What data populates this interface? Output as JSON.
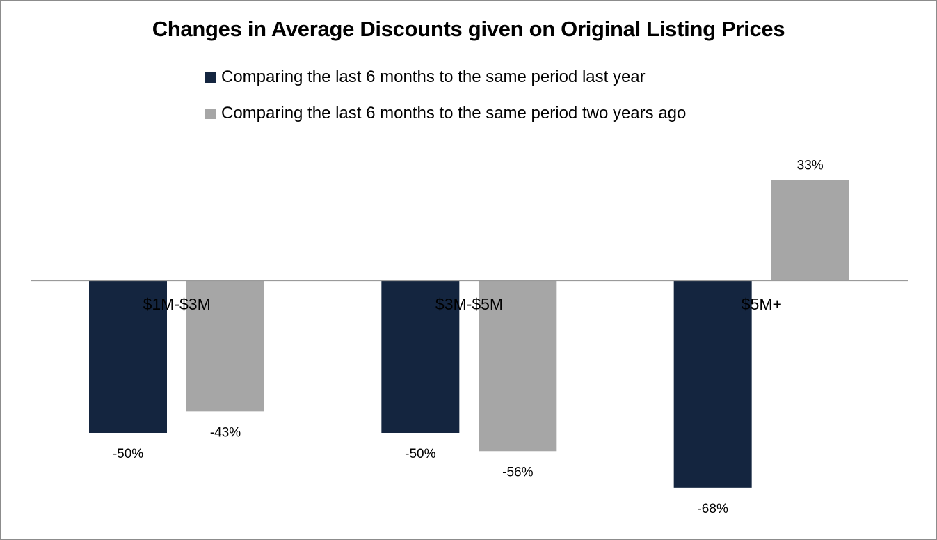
{
  "chart_data": {
    "type": "bar",
    "title": "Changes in Average Discounts given on Original Listing Prices",
    "categories": [
      "$1M-$3M",
      "$3M-$5M",
      "$5M+"
    ],
    "series": [
      {
        "name": "Comparing the last 6 months to the same period last year",
        "values": [
          -50,
          -50,
          -68
        ],
        "labels": [
          "-50%",
          "-50%",
          "-68%"
        ],
        "color": "#14253f"
      },
      {
        "name": "Comparing the last 6 months to the same period two years ago",
        "values": [
          -43,
          -56,
          33
        ],
        "labels": [
          "-43%",
          "-56%",
          "33%"
        ],
        "color": "#a6a6a6"
      }
    ],
    "xlabel": "",
    "ylabel": "",
    "ylim": [
      -70,
      35
    ],
    "grid": false,
    "legend": "top"
  }
}
